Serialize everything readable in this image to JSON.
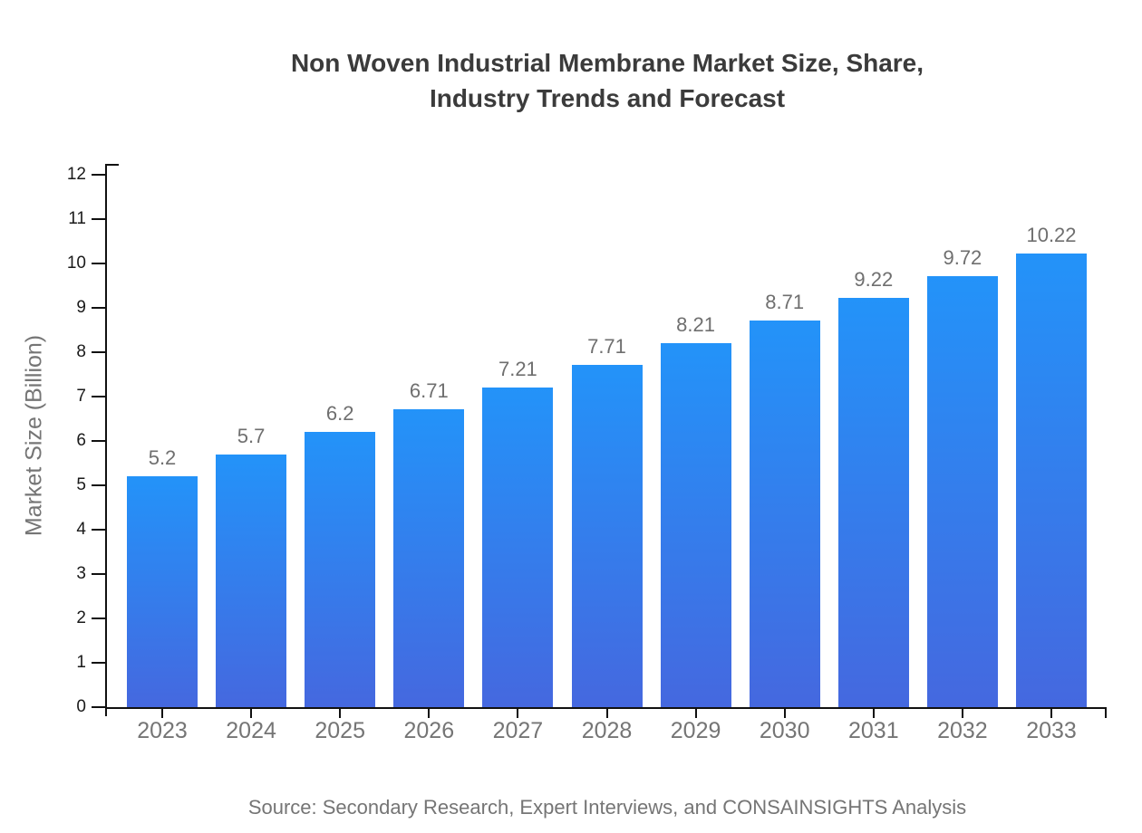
{
  "chart_data": {
    "type": "bar",
    "title": "Non Woven Industrial Membrane Market Size, Share, Industry Trends and Forecast",
    "title_lines": [
      "Non Woven Industrial Membrane Market Size, Share,",
      "Industry Trends and Forecast"
    ],
    "categories": [
      "2023",
      "2024",
      "2025",
      "2026",
      "2027",
      "2028",
      "2029",
      "2030",
      "2031",
      "2032",
      "2033"
    ],
    "values": [
      5.2,
      5.7,
      6.2,
      6.71,
      7.21,
      7.71,
      8.21,
      8.71,
      9.22,
      9.72,
      10.22
    ],
    "value_labels": [
      "5.2",
      "5.7",
      "6.2",
      "6.71",
      "7.21",
      "7.71",
      "8.21",
      "8.71",
      "9.22",
      "9.72",
      "10.22"
    ],
    "xlabel": "",
    "ylabel": "Market Size (Billion)",
    "ylim": [
      0,
      12
    ],
    "yticks": [
      "0",
      "1",
      "2",
      "3",
      "4",
      "5",
      "6",
      "7",
      "8",
      "9",
      "10",
      "11",
      "12"
    ],
    "grid": false,
    "legend": "none",
    "source_note": "Source: Secondary Research, Expert Interviews, and CONSAINSIGHTS Analysis",
    "colors": {
      "bar_gradient_top": "#2393F9",
      "bar_gradient_bottom": "#4568DF",
      "axis": "#111111",
      "y_tick_label": "#1a1a1a",
      "muted_text": "#757575",
      "value_label": "#6f6f6f",
      "title_text": "#3b3b3b",
      "background": "#ffffff"
    }
  }
}
